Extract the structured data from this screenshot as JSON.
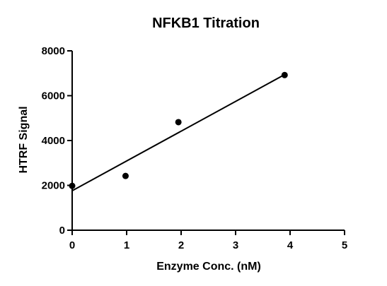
{
  "chart_data": {
    "type": "scatter",
    "title": "NFKB1 Titration",
    "xlabel": "Enzyme Conc. (nM)",
    "ylabel": "HTRF Signal",
    "xlim": [
      0,
      5
    ],
    "ylim": [
      0,
      8000
    ],
    "x_ticks": [
      "0",
      "1",
      "2",
      "3",
      "4",
      "5"
    ],
    "y_ticks": [
      "0",
      "2000",
      "4000",
      "6000",
      "8000"
    ],
    "grid": false,
    "legend": "none",
    "series": [
      {
        "x": [
          0,
          0.98,
          1.95,
          3.9
        ],
        "y": [
          1980,
          2420,
          4820,
          6920
        ]
      }
    ],
    "fit_line": {
      "x": [
        0,
        3.9
      ],
      "y": [
        1760,
        6940
      ]
    }
  }
}
